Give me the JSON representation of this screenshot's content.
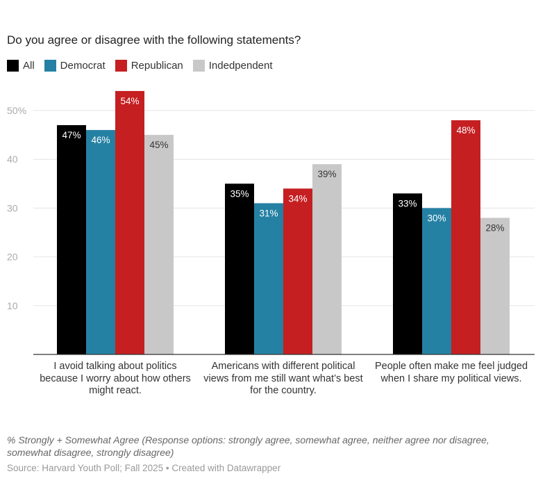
{
  "chart_data": {
    "type": "bar",
    "title": "Do you agree or disagree with the following statements?",
    "categories": [
      "I avoid talking about politics because I worry about how others might react.",
      "Americans with different political views from me still want what’s best for the country.",
      "People often make me feel judged when I share my political views."
    ],
    "series": [
      {
        "name": "All",
        "color": "#000000",
        "values": [
          47,
          35,
          33
        ]
      },
      {
        "name": "Democrat",
        "color": "#2581a3",
        "values": [
          46,
          31,
          30
        ]
      },
      {
        "name": "Republican",
        "color": "#c51f22",
        "values": [
          54,
          34,
          48
        ]
      },
      {
        "name": "Indedpendent",
        "color": "#c8c8c8",
        "values": [
          45,
          39,
          28
        ]
      }
    ],
    "yticks": [
      {
        "v": 10,
        "label": "10"
      },
      {
        "v": 20,
        "label": "20"
      },
      {
        "v": 30,
        "label": "30"
      },
      {
        "v": 40,
        "label": "40"
      },
      {
        "v": 50,
        "label": "50%"
      }
    ],
    "ylim": [
      0,
      50
    ],
    "grid": true,
    "legend": "top-left",
    "value_suffix": "%"
  },
  "note": "% Strongly + Somewhat Agree (Response options: strongly agree, somewhat agree, neither agree nor disagree, somewhat disagree, strongly disagree)",
  "source": "Source: Harvard Youth Poll; Fall 2025 • Created with Datawrapper"
}
